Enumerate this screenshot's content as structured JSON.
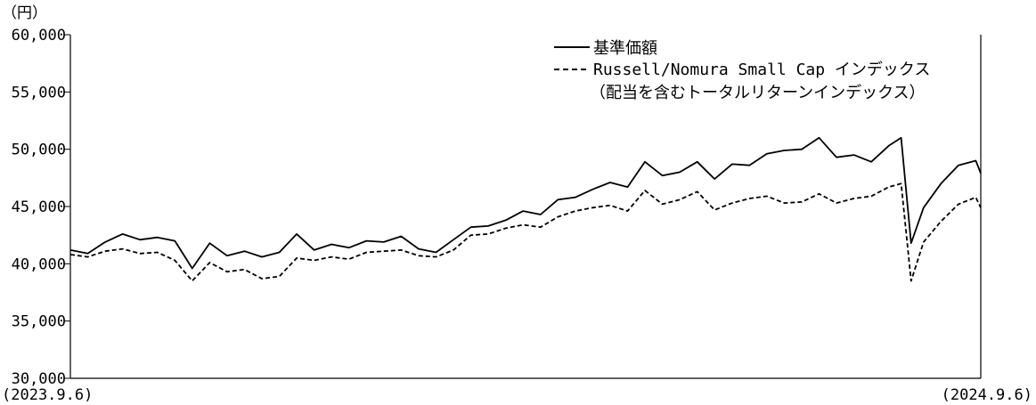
{
  "chart_data": {
    "type": "line",
    "y_unit": "（円）",
    "start_label": "(2023.9.6)",
    "end_label": "(2024.9.6)",
    "ylim": [
      30000,
      60000
    ],
    "yticks": [
      {
        "value": 60000,
        "label": "60,000"
      },
      {
        "value": 55000,
        "label": "55,000"
      },
      {
        "value": 50000,
        "label": "50,000"
      },
      {
        "value": 45000,
        "label": "45,000"
      },
      {
        "value": 40000,
        "label": "40,000"
      },
      {
        "value": 35000,
        "label": "35,000"
      },
      {
        "value": 30000,
        "label": "30,000"
      }
    ],
    "grid": false,
    "legend_position": "top-right",
    "legend_note": "（配当を含むトータルリターンインデックス）",
    "x_start": "2023-09-06",
    "x_end": "2024-09-06",
    "series": [
      {
        "name": "基準価額",
        "style": "solid",
        "color": "#000000",
        "points": [
          [
            "2023-09-06",
            41200
          ],
          [
            "2023-09-13",
            40900
          ],
          [
            "2023-09-20",
            41900
          ],
          [
            "2023-09-27",
            42600
          ],
          [
            "2023-10-04",
            42100
          ],
          [
            "2023-10-11",
            42300
          ],
          [
            "2023-10-18",
            42000
          ],
          [
            "2023-10-25",
            39600
          ],
          [
            "2023-11-01",
            41800
          ],
          [
            "2023-11-08",
            40700
          ],
          [
            "2023-11-15",
            41100
          ],
          [
            "2023-11-22",
            40600
          ],
          [
            "2023-11-29",
            41000
          ],
          [
            "2023-12-06",
            42600
          ],
          [
            "2023-12-13",
            41200
          ],
          [
            "2023-12-20",
            41700
          ],
          [
            "2023-12-27",
            41400
          ],
          [
            "2024-01-03",
            42000
          ],
          [
            "2024-01-10",
            41900
          ],
          [
            "2024-01-17",
            42400
          ],
          [
            "2024-01-24",
            41300
          ],
          [
            "2024-01-31",
            41000
          ],
          [
            "2024-02-07",
            42100
          ],
          [
            "2024-02-14",
            43200
          ],
          [
            "2024-02-21",
            43300
          ],
          [
            "2024-02-28",
            43800
          ],
          [
            "2024-03-06",
            44600
          ],
          [
            "2024-03-13",
            44300
          ],
          [
            "2024-03-20",
            45600
          ],
          [
            "2024-03-27",
            45800
          ],
          [
            "2024-04-03",
            46500
          ],
          [
            "2024-04-10",
            47100
          ],
          [
            "2024-04-17",
            46700
          ],
          [
            "2024-04-24",
            48900
          ],
          [
            "2024-05-01",
            47700
          ],
          [
            "2024-05-08",
            48000
          ],
          [
            "2024-05-15",
            48900
          ],
          [
            "2024-05-22",
            47400
          ],
          [
            "2024-05-29",
            48700
          ],
          [
            "2024-06-05",
            48600
          ],
          [
            "2024-06-12",
            49600
          ],
          [
            "2024-06-19",
            49900
          ],
          [
            "2024-06-26",
            50000
          ],
          [
            "2024-07-03",
            51000
          ],
          [
            "2024-07-10",
            49300
          ],
          [
            "2024-07-17",
            49500
          ],
          [
            "2024-07-24",
            48900
          ],
          [
            "2024-07-31",
            50300
          ],
          [
            "2024-08-05",
            51000
          ],
          [
            "2024-08-09",
            41800
          ],
          [
            "2024-08-14",
            44900
          ],
          [
            "2024-08-21",
            47000
          ],
          [
            "2024-08-28",
            48600
          ],
          [
            "2024-09-04",
            49000
          ],
          [
            "2024-09-06",
            47900
          ]
        ]
      },
      {
        "name": "Russell/Nomura Small Cap インデックス",
        "style": "dashed",
        "color": "#000000",
        "points": [
          [
            "2023-09-06",
            40800
          ],
          [
            "2023-09-13",
            40600
          ],
          [
            "2023-09-20",
            41100
          ],
          [
            "2023-09-27",
            41300
          ],
          [
            "2023-10-04",
            40900
          ],
          [
            "2023-10-11",
            41000
          ],
          [
            "2023-10-18",
            40300
          ],
          [
            "2023-10-25",
            38500
          ],
          [
            "2023-11-01",
            40100
          ],
          [
            "2023-11-08",
            39300
          ],
          [
            "2023-11-15",
            39500
          ],
          [
            "2023-11-22",
            38700
          ],
          [
            "2023-11-29",
            38900
          ],
          [
            "2023-12-06",
            40500
          ],
          [
            "2023-12-13",
            40300
          ],
          [
            "2023-12-20",
            40600
          ],
          [
            "2023-12-27",
            40400
          ],
          [
            "2024-01-03",
            41000
          ],
          [
            "2024-01-10",
            41100
          ],
          [
            "2024-01-17",
            41200
          ],
          [
            "2024-01-24",
            40700
          ],
          [
            "2024-01-31",
            40600
          ],
          [
            "2024-02-07",
            41200
          ],
          [
            "2024-02-14",
            42500
          ],
          [
            "2024-02-21",
            42600
          ],
          [
            "2024-02-28",
            43100
          ],
          [
            "2024-03-06",
            43400
          ],
          [
            "2024-03-13",
            43200
          ],
          [
            "2024-03-20",
            44100
          ],
          [
            "2024-03-27",
            44600
          ],
          [
            "2024-04-03",
            44900
          ],
          [
            "2024-04-10",
            45100
          ],
          [
            "2024-04-17",
            44600
          ],
          [
            "2024-04-24",
            46400
          ],
          [
            "2024-05-01",
            45200
          ],
          [
            "2024-05-08",
            45600
          ],
          [
            "2024-05-15",
            46300
          ],
          [
            "2024-05-22",
            44700
          ],
          [
            "2024-05-29",
            45300
          ],
          [
            "2024-06-05",
            45700
          ],
          [
            "2024-06-12",
            45900
          ],
          [
            "2024-06-19",
            45300
          ],
          [
            "2024-06-26",
            45400
          ],
          [
            "2024-07-03",
            46100
          ],
          [
            "2024-07-10",
            45300
          ],
          [
            "2024-07-17",
            45700
          ],
          [
            "2024-07-24",
            45900
          ],
          [
            "2024-07-31",
            46700
          ],
          [
            "2024-08-05",
            47000
          ],
          [
            "2024-08-09",
            38500
          ],
          [
            "2024-08-14",
            41900
          ],
          [
            "2024-08-21",
            43700
          ],
          [
            "2024-08-28",
            45200
          ],
          [
            "2024-09-04",
            45800
          ],
          [
            "2024-09-06",
            44900
          ]
        ]
      }
    ]
  }
}
